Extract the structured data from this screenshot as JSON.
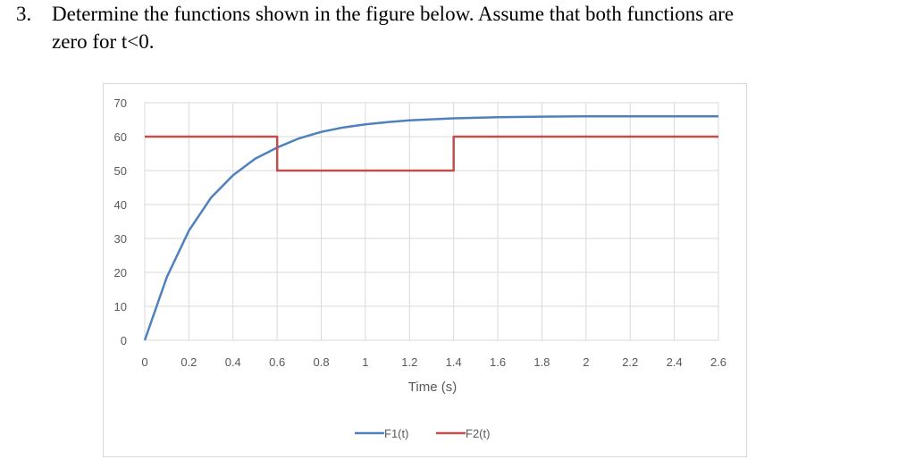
{
  "question": {
    "number": "3.",
    "text_line1": "Determine the functions shown in the figure below. Assume that both functions are",
    "text_line2": "zero for t<0."
  },
  "chart_data": {
    "type": "line",
    "title": "",
    "xlabel": "Time (s)",
    "ylabel": "",
    "xlim": [
      0,
      2.6
    ],
    "ylim": [
      0,
      70
    ],
    "xticks": [
      "0",
      "0.2",
      "0.4",
      "0.6",
      "0.8",
      "1",
      "1.2",
      "1.4",
      "1.6",
      "1.8",
      "2",
      "2.2",
      "2.4",
      "2.6"
    ],
    "yticks": [
      "0",
      "10",
      "20",
      "30",
      "40",
      "50",
      "60",
      "70"
    ],
    "grid": true,
    "legend_position": "bottom",
    "series": [
      {
        "name": "F1(t)",
        "color": "#4f81bd",
        "x": [
          0,
          0.1,
          0.2,
          0.3,
          0.4,
          0.5,
          0.6,
          0.7,
          0.8,
          0.9,
          1.0,
          1.1,
          1.2,
          1.3,
          1.4,
          1.6,
          1.8,
          2.0,
          2.2,
          2.4,
          2.6
        ],
        "y": [
          0,
          18.6,
          32.3,
          42.0,
          48.6,
          53.5,
          56.8,
          59.5,
          61.4,
          62.7,
          63.6,
          64.3,
          64.8,
          65.1,
          65.4,
          65.7,
          65.9,
          66.0,
          66.0,
          66.0,
          66.0
        ]
      },
      {
        "name": "F2(t)",
        "color": "#c0504d",
        "x": [
          0,
          0.6,
          0.6,
          1.4,
          1.4,
          2.6
        ],
        "y": [
          60,
          60,
          50,
          50,
          60,
          60
        ]
      }
    ]
  }
}
